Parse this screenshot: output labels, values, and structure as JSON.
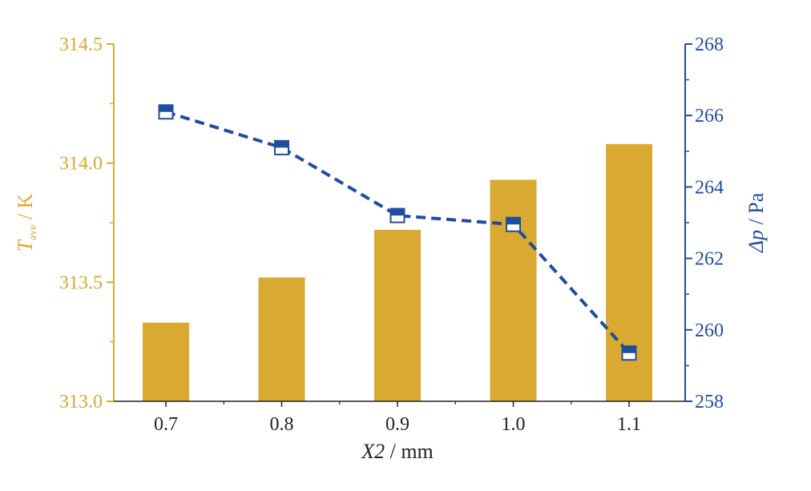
{
  "chart_data": {
    "type": "bar+line",
    "categories": [
      "0.7",
      "0.8",
      "0.9",
      "1.0",
      "1.1"
    ],
    "bar_series": {
      "axis": "left",
      "values": [
        313.33,
        313.52,
        313.72,
        313.93,
        314.08
      ],
      "color": "#DAA932"
    },
    "line_series": {
      "axis": "right",
      "values": [
        266.1,
        265.1,
        263.2,
        262.95,
        259.35
      ],
      "color": "#1F4E9E",
      "line_style": "dashed",
      "marker": "half-filled-square"
    },
    "left_axis": {
      "label_main": "T",
      "label_sub": "ave",
      "label_rest": " / K",
      "ylim": [
        313.0,
        314.5
      ],
      "ticks": [
        "313.0",
        "313.5",
        "314.0",
        "314.5"
      ],
      "color": "#DAA932"
    },
    "right_axis": {
      "label_main": "Δp",
      "label_rest": " / Pa",
      "ylim": [
        258,
        268
      ],
      "ticks": [
        "258",
        "260",
        "262",
        "264",
        "266",
        "268"
      ],
      "color": "#1F4E9E"
    },
    "x_axis": {
      "label_main": "X2",
      "label_rest": " / mm"
    },
    "grid": false,
    "legend": "none"
  }
}
